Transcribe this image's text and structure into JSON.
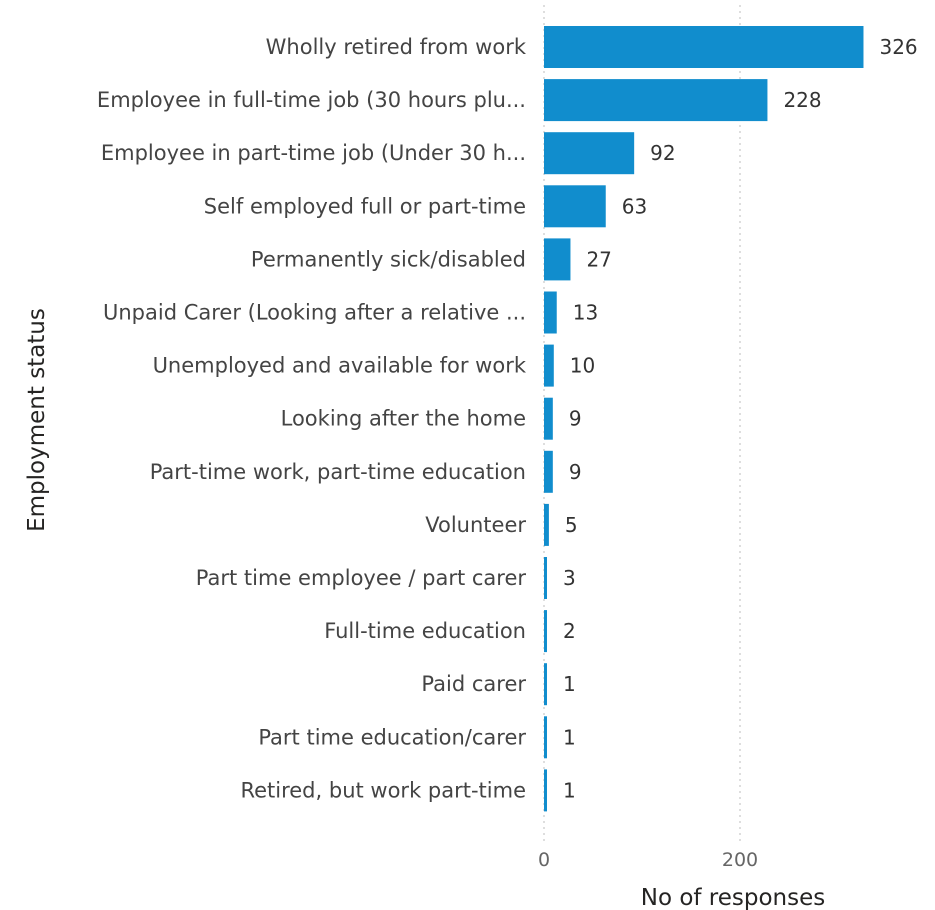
{
  "chart_data": {
    "type": "bar",
    "orientation": "horizontal",
    "categories": [
      "Wholly retired from work",
      "Employee in full-time job (30 hours plu...",
      "Employee in part-time job (Under 30 h...",
      "Self employed full or part-time",
      "Permanently sick/disabled",
      "Unpaid Carer (Looking after a relative ...",
      "Unemployed and available for work",
      "Looking after the home",
      "Part-time work, part-time education",
      "Volunteer",
      "Part time employee / part carer",
      "Full-time education",
      "Paid carer",
      "Part time education/carer",
      "Retired, but work part-time"
    ],
    "values": [
      326,
      228,
      92,
      63,
      27,
      13,
      10,
      9,
      9,
      5,
      3,
      2,
      1,
      1,
      1
    ],
    "xlabel": "No of responses",
    "ylabel": "Employment status",
    "xticks": [
      0,
      200
    ],
    "xlim": [
      0,
      330
    ],
    "grid": "vertical dotted",
    "bar_color": "#118DCD"
  }
}
